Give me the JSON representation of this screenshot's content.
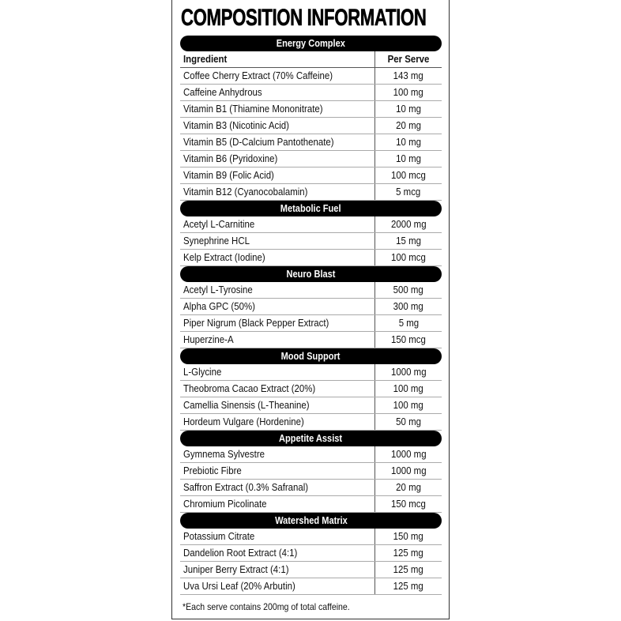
{
  "title": "COMPOSITION INFORMATION",
  "columns": {
    "ingredient": "Ingredient",
    "per_serve": "Per Serve"
  },
  "sections": [
    {
      "name": "Energy Complex",
      "rows": [
        [
          "Coffee Cherry Extract (70% Caffeine)",
          "143 mg"
        ],
        [
          "Caffeine Anhydrous",
          "100 mg"
        ],
        [
          "Vitamin B1 (Thiamine Mononitrate)",
          "10 mg"
        ],
        [
          "Vitamin B3 (Nicotinic Acid)",
          "20 mg"
        ],
        [
          "Vitamin B5 (D-Calcium Pantothenate)",
          "10 mg"
        ],
        [
          "Vitamin B6 (Pyridoxine)",
          "10 mg"
        ],
        [
          "Vitamin B9 (Folic Acid)",
          "100 mcg"
        ],
        [
          "Vitamin B12 (Cyanocobalamin)",
          "5 mcg"
        ]
      ]
    },
    {
      "name": "Metabolic Fuel",
      "rows": [
        [
          "Acetyl L-Carnitine",
          "2000 mg"
        ],
        [
          "Synephrine HCL",
          "15 mg"
        ],
        [
          "Kelp Extract (Iodine)",
          "100 mcg"
        ]
      ]
    },
    {
      "name": "Neuro Blast",
      "rows": [
        [
          "Acetyl L-Tyrosine",
          "500 mg"
        ],
        [
          "Alpha GPC (50%)",
          "300 mg"
        ],
        [
          "Piper Nigrum (Black Pepper Extract)",
          "5 mg"
        ],
        [
          "Huperzine-A",
          "150 mcg"
        ]
      ]
    },
    {
      "name": "Mood Support",
      "rows": [
        [
          "L-Glycine",
          "1000 mg"
        ],
        [
          "Theobroma Cacao Extract (20%)",
          "100 mg"
        ],
        [
          "Camellia Sinensis (L-Theanine)",
          "100 mg"
        ],
        [
          "Hordeum Vulgare (Hordenine)",
          "50 mg"
        ]
      ]
    },
    {
      "name": "Appetite Assist",
      "rows": [
        [
          "Gymnema Sylvestre",
          "1000 mg"
        ],
        [
          "Prebiotic Fibre",
          "1000 mg"
        ],
        [
          "Saffron Extract (0.3% Safranal)",
          "20 mg"
        ],
        [
          "Chromium Picolinate",
          "150 mcg"
        ]
      ]
    },
    {
      "name": "Watershed Matrix",
      "rows": [
        [
          "Potassium Citrate",
          "150 mg"
        ],
        [
          "Dandelion Root Extract (4:1)",
          "125 mg"
        ],
        [
          "Juniper Berry Extract (4:1)",
          "125 mg"
        ],
        [
          "Uva Ursi Leaf (20% Arbutin)",
          "125 mg"
        ]
      ]
    }
  ],
  "footnote": "*Each serve contains 200mg of total caffeine."
}
